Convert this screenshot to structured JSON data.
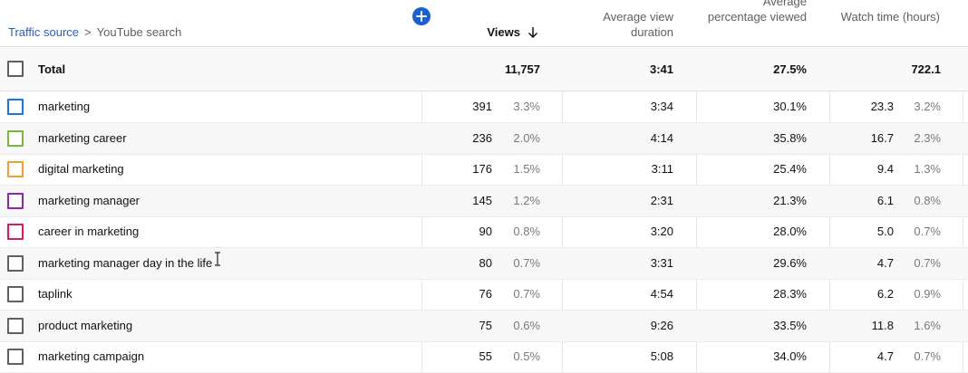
{
  "header": {
    "breadcrumb_link": "Traffic source",
    "breadcrumb_separator": ">",
    "breadcrumb_current": "YouTube search",
    "col_views": "Views",
    "col_avg_view_duration": "Average view duration",
    "col_avg_pct_viewed": "Average percentage viewed",
    "col_watch_time": "Watch time (hours)",
    "sort_icon": "arrow-down-icon",
    "add_icon": "plus-icon"
  },
  "total": {
    "label": "Total",
    "views": "11,757",
    "avg_view_duration": "3:41",
    "avg_pct_viewed": "27.5%",
    "watch_time": "722.1"
  },
  "rows": [
    {
      "label": "marketing",
      "views": "391",
      "views_pct": "3.3%",
      "avd": "3:34",
      "apv": "30.1%",
      "wt": "23.3",
      "wt_pct": "3.2%",
      "color": "#1a73e8"
    },
    {
      "label": "marketing career",
      "views": "236",
      "views_pct": "2.0%",
      "avd": "4:14",
      "apv": "35.8%",
      "wt": "16.7",
      "wt_pct": "2.3%",
      "color": "#7cb342"
    },
    {
      "label": "digital marketing",
      "views": "176",
      "views_pct": "1.5%",
      "avd": "3:11",
      "apv": "25.4%",
      "wt": "9.4",
      "wt_pct": "1.3%",
      "color": "#f0a030"
    },
    {
      "label": "marketing manager",
      "views": "145",
      "views_pct": "1.2%",
      "avd": "2:31",
      "apv": "21.3%",
      "wt": "6.1",
      "wt_pct": "0.8%",
      "color": "#8e24aa"
    },
    {
      "label": "career in marketing",
      "views": "90",
      "views_pct": "0.8%",
      "avd": "3:20",
      "apv": "28.0%",
      "wt": "5.0",
      "wt_pct": "0.7%",
      "color": "#d81b60"
    },
    {
      "label": "marketing manager day in the life",
      "views": "80",
      "views_pct": "0.7%",
      "avd": "3:31",
      "apv": "29.6%",
      "wt": "4.7",
      "wt_pct": "0.7%",
      "color": "#606060"
    },
    {
      "label": "taplink",
      "views": "76",
      "views_pct": "0.7%",
      "avd": "4:54",
      "apv": "28.3%",
      "wt": "6.2",
      "wt_pct": "0.9%",
      "color": "#606060"
    },
    {
      "label": "product marketing",
      "views": "75",
      "views_pct": "0.6%",
      "avd": "9:26",
      "apv": "33.5%",
      "wt": "11.8",
      "wt_pct": "1.6%",
      "color": "#606060"
    },
    {
      "label": "marketing campaign",
      "views": "55",
      "views_pct": "0.5%",
      "avd": "5:08",
      "apv": "34.0%",
      "wt": "4.7",
      "wt_pct": "0.7%",
      "color": "#606060"
    }
  ]
}
